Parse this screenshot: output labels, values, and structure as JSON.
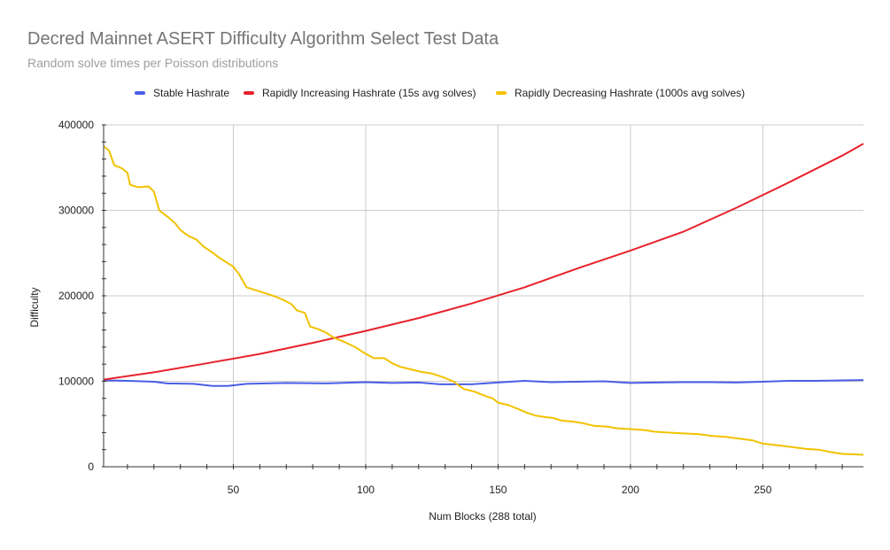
{
  "chart_data": {
    "type": "line",
    "title": "Decred Mainnet ASERT Difficulty Algorithm Select Test Data",
    "subtitle": "Random solve times per Poisson distributions",
    "xlabel": "Num Blocks (288 total)",
    "ylabel": "Difficulty",
    "xlim": [
      1,
      288
    ],
    "ylim": [
      0,
      400000
    ],
    "x_ticks": [
      50,
      100,
      150,
      200,
      250
    ],
    "y_ticks": [
      0,
      100000,
      200000,
      300000,
      400000
    ],
    "x_tick_labels": [
      "50",
      "100",
      "150",
      "200",
      "250"
    ],
    "y_tick_labels": [
      "0",
      "100000",
      "200000",
      "300000",
      "400000"
    ],
    "grid": true,
    "legend_position": "top",
    "series": [
      {
        "name": "Stable Hashrate",
        "color": "#4a5ee8",
        "points": [
          [
            1,
            101000
          ],
          [
            10,
            100500
          ],
          [
            20,
            99500
          ],
          [
            25,
            97500
          ],
          [
            35,
            97000
          ],
          [
            42,
            94500
          ],
          [
            48,
            94500
          ],
          [
            55,
            97000
          ],
          [
            70,
            98000
          ],
          [
            85,
            97500
          ],
          [
            100,
            99000
          ],
          [
            110,
            98000
          ],
          [
            120,
            98500
          ],
          [
            128,
            96500
          ],
          [
            140,
            96500
          ],
          [
            150,
            98500
          ],
          [
            160,
            100500
          ],
          [
            170,
            99000
          ],
          [
            180,
            99500
          ],
          [
            190,
            100000
          ],
          [
            200,
            98000
          ],
          [
            210,
            98500
          ],
          [
            220,
            99000
          ],
          [
            230,
            99000
          ],
          [
            240,
            98500
          ],
          [
            250,
            99500
          ],
          [
            260,
            100500
          ],
          [
            270,
            100500
          ],
          [
            280,
            101000
          ],
          [
            288,
            101500
          ]
        ]
      },
      {
        "name": "Rapidly Increasing Hashrate (15s avg solves)",
        "color": "#e8222c",
        "points": [
          [
            1,
            102000
          ],
          [
            20,
            110500
          ],
          [
            40,
            121000
          ],
          [
            60,
            132000
          ],
          [
            80,
            145000
          ],
          [
            100,
            159000
          ],
          [
            120,
            174000
          ],
          [
            140,
            191000
          ],
          [
            160,
            210000
          ],
          [
            180,
            232000
          ],
          [
            200,
            253000
          ],
          [
            220,
            275000
          ],
          [
            240,
            303000
          ],
          [
            260,
            333000
          ],
          [
            280,
            364000
          ],
          [
            288,
            378000
          ]
        ]
      },
      {
        "name": "Rapidly Decreasing Hashrate (1000s avg solves)",
        "color": "#f2c200",
        "points": [
          [
            1,
            375000
          ],
          [
            3,
            370000
          ],
          [
            5,
            353000
          ],
          [
            8,
            349000
          ],
          [
            10,
            344000
          ],
          [
            11,
            330000
          ],
          [
            14,
            327000
          ],
          [
            18,
            328000
          ],
          [
            20,
            322000
          ],
          [
            22,
            300000
          ],
          [
            25,
            293000
          ],
          [
            28,
            285000
          ],
          [
            30,
            277000
          ],
          [
            33,
            270000
          ],
          [
            36,
            266000
          ],
          [
            39,
            257000
          ],
          [
            42,
            251000
          ],
          [
            44,
            246000
          ],
          [
            47,
            240000
          ],
          [
            50,
            234000
          ],
          [
            52,
            226000
          ],
          [
            55,
            210000
          ],
          [
            58,
            207000
          ],
          [
            62,
            203000
          ],
          [
            66,
            199000
          ],
          [
            69,
            195000
          ],
          [
            72,
            190000
          ],
          [
            74,
            183000
          ],
          [
            77,
            180000
          ],
          [
            79,
            164000
          ],
          [
            82,
            161000
          ],
          [
            85,
            157000
          ],
          [
            88,
            151000
          ],
          [
            92,
            146000
          ],
          [
            96,
            140000
          ],
          [
            99,
            134000
          ],
          [
            103,
            127000
          ],
          [
            107,
            127000
          ],
          [
            110,
            121000
          ],
          [
            113,
            117000
          ],
          [
            117,
            114000
          ],
          [
            121,
            111000
          ],
          [
            125,
            109000
          ],
          [
            129,
            105000
          ],
          [
            133,
            100000
          ],
          [
            137,
            91000
          ],
          [
            141,
            88000
          ],
          [
            145,
            83000
          ],
          [
            148,
            80000
          ],
          [
            150,
            75000
          ],
          [
            154,
            72000
          ],
          [
            158,
            67000
          ],
          [
            161,
            63000
          ],
          [
            164,
            60000
          ],
          [
            168,
            58000
          ],
          [
            171,
            57000
          ],
          [
            174,
            54000
          ],
          [
            178,
            53000
          ],
          [
            182,
            51000
          ],
          [
            186,
            48000
          ],
          [
            191,
            47000
          ],
          [
            195,
            45000
          ],
          [
            200,
            44000
          ],
          [
            205,
            43000
          ],
          [
            209,
            41000
          ],
          [
            214,
            40000
          ],
          [
            220,
            39000
          ],
          [
            226,
            38000
          ],
          [
            231,
            36000
          ],
          [
            236,
            35000
          ],
          [
            241,
            33000
          ],
          [
            246,
            31000
          ],
          [
            250,
            27000
          ],
          [
            256,
            25000
          ],
          [
            261,
            23000
          ],
          [
            266,
            21000
          ],
          [
            271,
            20000
          ],
          [
            276,
            17000
          ],
          [
            280,
            15000
          ],
          [
            285,
            14500
          ],
          [
            288,
            14000
          ]
        ]
      }
    ]
  }
}
